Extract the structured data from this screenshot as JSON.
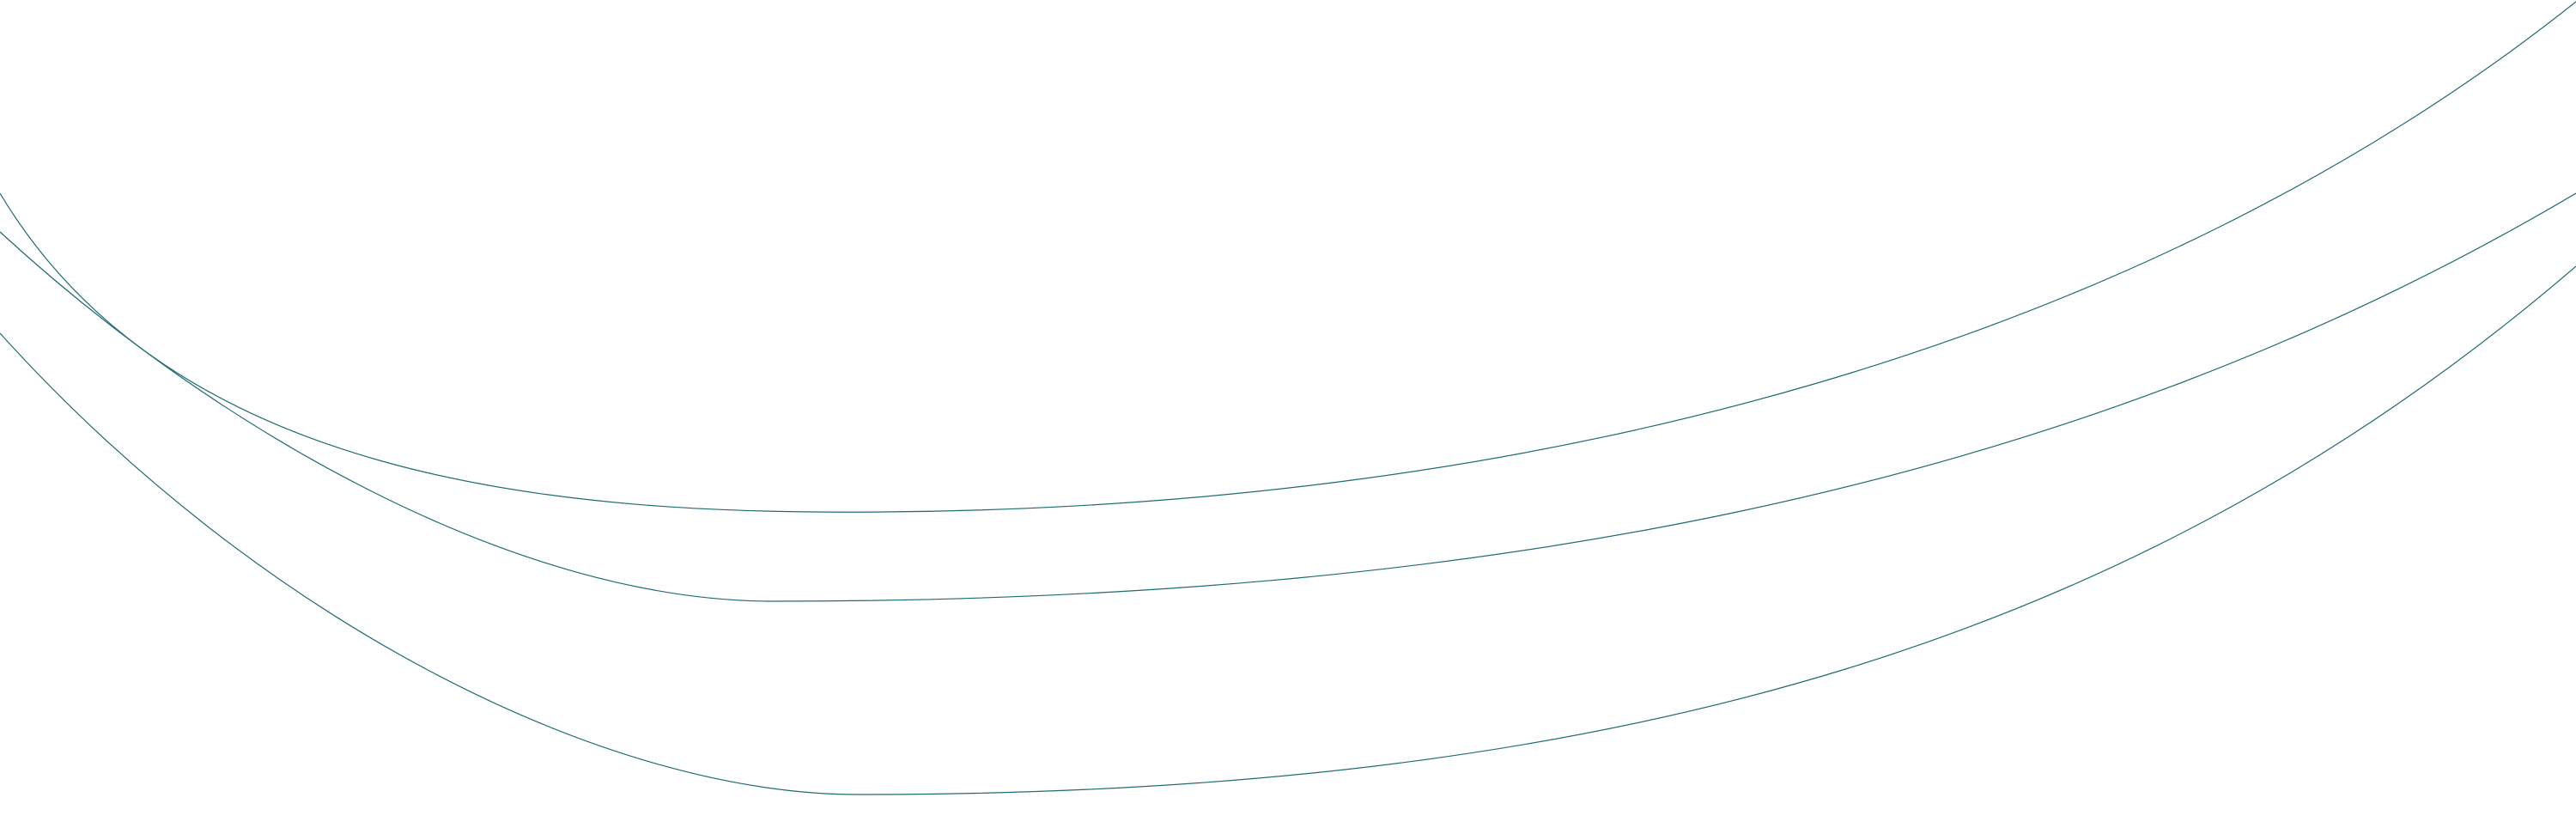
{
  "background": "#ffffff",
  "curves": {
    "stroke_color": "#1f6b70",
    "count": 3
  }
}
